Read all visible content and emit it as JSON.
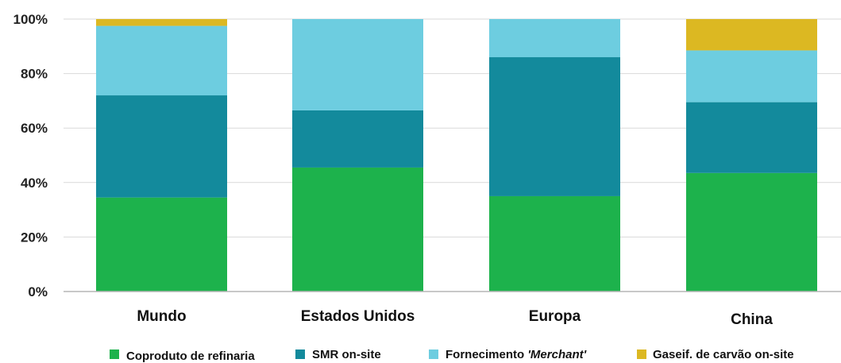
{
  "chart_data": {
    "type": "bar",
    "stacked": true,
    "categories": [
      "Mundo",
      "Estados Unidos",
      "Europa",
      "China"
    ],
    "ylim": [
      0,
      100
    ],
    "yticks": [
      "0%",
      "20%",
      "40%",
      "60%",
      "80%",
      "100%"
    ],
    "ytick_values": [
      0,
      20,
      40,
      60,
      80,
      100
    ],
    "grid": true,
    "legend_position": "bottom",
    "series": [
      {
        "name": "Coproduto de refinaria",
        "values": [
          34.5,
          45.5,
          35,
          43.5
        ]
      },
      {
        "name": "SMR on-site",
        "values": [
          37.5,
          21,
          51,
          26
        ]
      },
      {
        "name": "Fornecimento 'Merchant'",
        "values": [
          25.5,
          33.5,
          14,
          19
        ]
      },
      {
        "name": "Gaseif. de carvão on-site",
        "values": [
          2.5,
          0,
          0,
          11.5
        ]
      }
    ],
    "colors": [
      "#1db24c",
      "#138a9c",
      "#6dcde0",
      "#dcb822"
    ],
    "legend": {
      "s0_label": "Coproduto de refinaria",
      "s1_label": "SMR on-site",
      "s2_prefix": "Fornecimento ",
      "s2_italic": "'Merchant'",
      "s3_label": "Gaseif. de carvão on-site"
    }
  }
}
